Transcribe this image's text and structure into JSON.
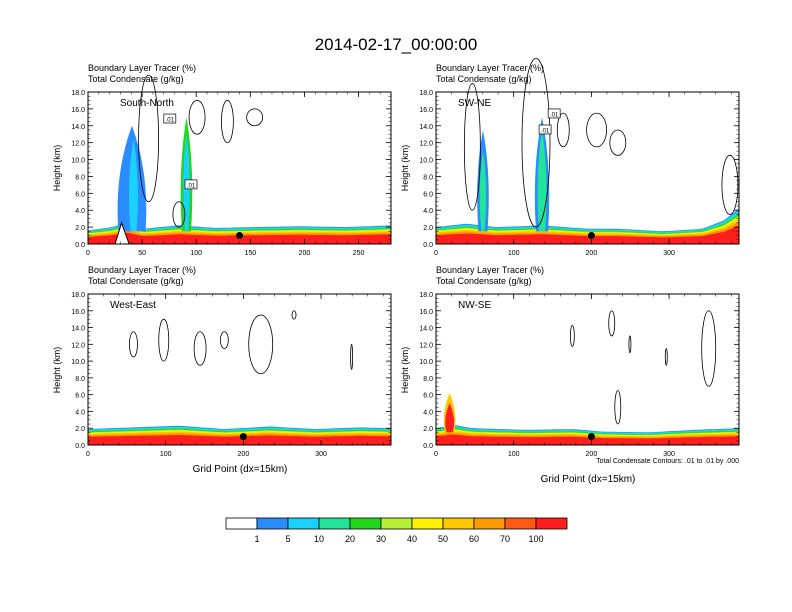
{
  "title": "2014-02-17_00:00:00",
  "colors": {
    "levels": [
      "#ffffff",
      "#2b8cff",
      "#1ad2ff",
      "#21e39a",
      "#22d61c",
      "#b6ef34",
      "#fff200",
      "#ffc800",
      "#ff9a00",
      "#ff5a14",
      "#ff1e1e"
    ],
    "contour": "#000000"
  },
  "chart_data": [
    {
      "type": "heatmap",
      "name": "South-North",
      "title_lines": [
        "Boundary Layer Tracer   (%)",
        "Total Condensate   (g/kg)"
      ],
      "label": "South-North",
      "xlabel": "",
      "ylabel": "Height (km)",
      "xlim": [
        0,
        280
      ],
      "ylim": [
        0,
        18
      ],
      "xticks": [
        0,
        50,
        100,
        150,
        200,
        250
      ],
      "yticks": [
        "0.0",
        "2.0",
        "4.0",
        "6.0",
        "8.0",
        "10.0",
        "12.0",
        "14.0",
        "16.0",
        "18.0"
      ],
      "marker": [
        140,
        1.0
      ],
      "box_labels": [
        ".01",
        ".01"
      ]
    },
    {
      "type": "heatmap",
      "name": "SW-NE",
      "title_lines": [
        "Boundary Layer Tracer   (%)",
        "Total Condensate   (g/kg)"
      ],
      "label": "SW-NE",
      "xlabel": "",
      "ylabel": "Height (km)",
      "xlim": [
        0,
        390
      ],
      "ylim": [
        0,
        18
      ],
      "xticks": [
        0,
        100,
        200,
        300
      ],
      "yticks": [
        "0.0",
        "2.0",
        "4.0",
        "6.0",
        "8.0",
        "10.0",
        "12.0",
        "14.0",
        "16.0",
        "18.0"
      ],
      "marker": [
        200,
        1.0
      ],
      "box_labels": [
        ".01",
        ".01"
      ]
    },
    {
      "type": "heatmap",
      "name": "West-East",
      "title_lines": [
        "Boundary Layer Tracer   (%)",
        "Total Condensate   (g/kg)"
      ],
      "label": "West-East",
      "xlabel": "Grid Point (dx=15km)",
      "ylabel": "Height (km)",
      "xlim": [
        0,
        390
      ],
      "ylim": [
        0,
        18
      ],
      "xticks": [
        0,
        100,
        200,
        300
      ],
      "yticks": [
        "0.0",
        "2.0",
        "4.0",
        "6.0",
        "8.0",
        "10.0",
        "12.0",
        "14.0",
        "16.0",
        "18.0"
      ],
      "marker": [
        200,
        1.0
      ],
      "box_labels": []
    },
    {
      "type": "heatmap",
      "name": "NW-SE",
      "title_lines": [
        "Boundary Layer Tracer   (%)",
        "Total Condensate   (g/kg)"
      ],
      "label": "NW-SE",
      "xlabel": "Grid Point (dx=15km)",
      "ylabel": "Height (km)",
      "xlim": [
        0,
        390
      ],
      "ylim": [
        0,
        18
      ],
      "xticks": [
        0,
        100,
        200,
        300
      ],
      "yticks": [
        "0.0",
        "2.0",
        "4.0",
        "6.0",
        "8.0",
        "10.0",
        "12.0",
        "14.0",
        "16.0",
        "18.0"
      ],
      "marker": [
        200,
        1.0
      ],
      "box_labels": [],
      "footnote": "Total Condensate Contours: .01 to .01 by .000"
    }
  ],
  "colorbar": {
    "labels": [
      "1",
      "5",
      "10",
      "20",
      "30",
      "40",
      "50",
      "60",
      "70",
      "100"
    ]
  }
}
